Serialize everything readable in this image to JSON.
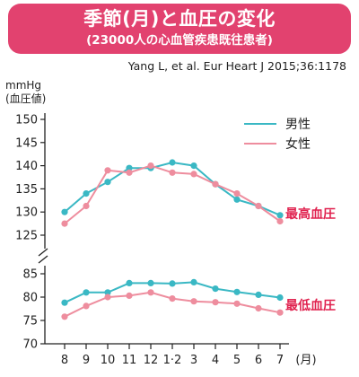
{
  "header": {
    "title": "季節(月)と血圧の変化",
    "subtitle": "(23000人の心血管疾患既往患者)"
  },
  "source": "Yang L, et al. Eur Heart J 2015;36:1178",
  "chart_data": {
    "type": "line",
    "y_unit": "mmHg",
    "y_unit_sub": "(血圧値)",
    "x_unit": "(月)",
    "categories": [
      "8",
      "9",
      "10",
      "11",
      "12",
      "1·2",
      "3",
      "4",
      "5",
      "6",
      "7"
    ],
    "legend": [
      {
        "name": "男性",
        "color": "#3ab8c4"
      },
      {
        "name": "女性",
        "color": "#ee8d9e"
      }
    ],
    "legend_position": "top-right",
    "panels": [
      {
        "label": "最高血圧",
        "ylim": [
          125,
          150
        ],
        "yticks": [
          125,
          130,
          135,
          140,
          145,
          150
        ],
        "series": [
          {
            "name": "男性",
            "color": "#3ab8c4",
            "values": [
              130.0,
              134.0,
              136.5,
              139.5,
              139.5,
              140.7,
              140.0,
              136.0,
              132.7,
              131.3,
              129.3
            ]
          },
          {
            "name": "女性",
            "color": "#ee8d9e",
            "values": [
              127.5,
              131.3,
              139.0,
              138.5,
              140.0,
              138.5,
              138.2,
              136.0,
              134.0,
              131.3,
              128.0
            ]
          }
        ]
      },
      {
        "label": "最低血圧",
        "ylim": [
          70,
          85
        ],
        "yticks": [
          70,
          75,
          80,
          85
        ],
        "series": [
          {
            "name": "男性",
            "color": "#3ab8c4",
            "values": [
              78.8,
              81.0,
              81.0,
              83.0,
              83.0,
              82.9,
              83.2,
              81.8,
              81.1,
              80.5,
              79.9
            ]
          },
          {
            "name": "女性",
            "color": "#ee8d9e",
            "values": [
              75.8,
              78.1,
              80.0,
              80.3,
              81.0,
              79.7,
              79.1,
              78.9,
              78.6,
              77.6,
              76.7
            ]
          }
        ]
      }
    ]
  }
}
